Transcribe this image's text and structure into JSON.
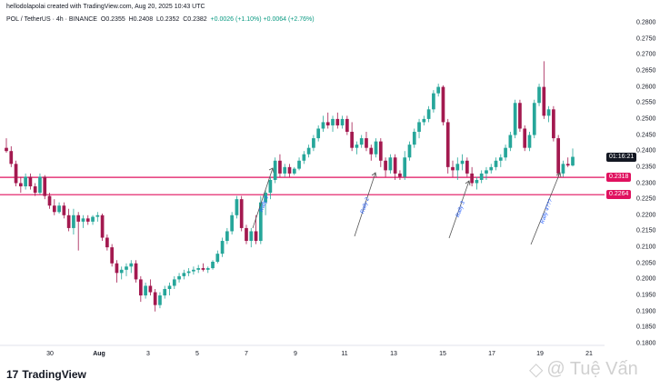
{
  "header": {
    "credit": "hellodolapolai created with TradingView.com, Aug 20, 2025 10:43 UTC",
    "symbol": "POL / TetherUS · 4h · BINANCE",
    "open": "O0.2355",
    "high": "H0.2408",
    "low": "L0.2352",
    "close": "C0.2382",
    "change": "+0.0026 (+1.10%) +0.0064 (+2.76%)"
  },
  "price_axis": {
    "ticks": [
      "0.2800",
      "0.2750",
      "0.2700",
      "0.2650",
      "0.2600",
      "0.2550",
      "0.2500",
      "0.2450",
      "0.2400",
      "0.2350",
      "0.2300",
      "0.2250",
      "0.2200",
      "0.2150",
      "0.2100",
      "0.2050",
      "0.2000",
      "0.1950",
      "0.1900",
      "0.1850",
      "0.1800"
    ],
    "countdown": "01:16:21",
    "support_upper": "0.2318",
    "support_lower": "0.2264"
  },
  "time_axis": {
    "ticks": [
      "30",
      "Aug",
      "3",
      "5",
      "7",
      "9",
      "11",
      "13",
      "15",
      "17",
      "19",
      "21"
    ]
  },
  "annotations": {
    "rally1": "Rally 1",
    "rally2": "Rally 2",
    "rally3": "Rally 3",
    "rally4": "Rally 4???"
  },
  "branding": {
    "logo": "TradingView",
    "watermark": "@ Tuệ Vấn"
  },
  "colors": {
    "up": "#26a69a",
    "down": "#a3194f",
    "line": "#e0115f",
    "countdown_bg": "#131722"
  },
  "chart_data": {
    "type": "candlestick",
    "symbol": "POL / TetherUS",
    "interval": "4h",
    "exchange": "BINANCE",
    "ylim": [
      0.18,
      0.28
    ],
    "horizontal_lines": [
      0.2318,
      0.2264
    ],
    "candles": [
      [
        0.241,
        0.244,
        0.2395,
        0.24
      ],
      [
        0.24,
        0.2415,
        0.235,
        0.236
      ],
      [
        0.236,
        0.237,
        0.229,
        0.23
      ],
      [
        0.23,
        0.232,
        0.227,
        0.229
      ],
      [
        0.229,
        0.233,
        0.228,
        0.232
      ],
      [
        0.232,
        0.233,
        0.228,
        0.229
      ],
      [
        0.229,
        0.23,
        0.226,
        0.227
      ],
      [
        0.227,
        0.233,
        0.2265,
        0.232
      ],
      [
        0.232,
        0.2325,
        0.225,
        0.226
      ],
      [
        0.226,
        0.227,
        0.222,
        0.223
      ],
      [
        0.223,
        0.225,
        0.22,
        0.221
      ],
      [
        0.221,
        0.224,
        0.2205,
        0.223
      ],
      [
        0.223,
        0.224,
        0.219,
        0.22
      ],
      [
        0.22,
        0.222,
        0.215,
        0.216
      ],
      [
        0.216,
        0.222,
        0.214,
        0.22
      ],
      [
        0.22,
        0.221,
        0.209,
        0.218
      ],
      [
        0.218,
        0.22,
        0.216,
        0.219
      ],
      [
        0.219,
        0.22,
        0.217,
        0.218
      ],
      [
        0.218,
        0.22,
        0.217,
        0.2195
      ],
      [
        0.2195,
        0.221,
        0.218,
        0.22
      ],
      [
        0.22,
        0.2205,
        0.212,
        0.213
      ],
      [
        0.213,
        0.214,
        0.209,
        0.21
      ],
      [
        0.21,
        0.211,
        0.204,
        0.205
      ],
      [
        0.205,
        0.206,
        0.199,
        0.202
      ],
      [
        0.202,
        0.204,
        0.2,
        0.203
      ],
      [
        0.203,
        0.205,
        0.201,
        0.204
      ],
      [
        0.204,
        0.206,
        0.202,
        0.205
      ],
      [
        0.205,
        0.206,
        0.199,
        0.2
      ],
      [
        0.2,
        0.201,
        0.193,
        0.195
      ],
      [
        0.195,
        0.199,
        0.194,
        0.198
      ],
      [
        0.198,
        0.2,
        0.195,
        0.196
      ],
      [
        0.196,
        0.197,
        0.19,
        0.192
      ],
      [
        0.192,
        0.196,
        0.191,
        0.195
      ],
      [
        0.195,
        0.198,
        0.194,
        0.197
      ],
      [
        0.197,
        0.199,
        0.195,
        0.198
      ],
      [
        0.198,
        0.201,
        0.197,
        0.2
      ],
      [
        0.2,
        0.202,
        0.199,
        0.201
      ],
      [
        0.201,
        0.203,
        0.2,
        0.202
      ],
      [
        0.202,
        0.2035,
        0.201,
        0.2025
      ],
      [
        0.2025,
        0.204,
        0.2015,
        0.203
      ],
      [
        0.203,
        0.2045,
        0.202,
        0.2035
      ],
      [
        0.2035,
        0.205,
        0.2025,
        0.203
      ],
      [
        0.203,
        0.204,
        0.202,
        0.2035
      ],
      [
        0.2035,
        0.206,
        0.203,
        0.2055
      ],
      [
        0.2055,
        0.209,
        0.205,
        0.208
      ],
      [
        0.208,
        0.213,
        0.207,
        0.212
      ],
      [
        0.212,
        0.216,
        0.211,
        0.215
      ],
      [
        0.215,
        0.221,
        0.214,
        0.22
      ],
      [
        0.22,
        0.226,
        0.219,
        0.225
      ],
      [
        0.225,
        0.226,
        0.215,
        0.216
      ],
      [
        0.216,
        0.217,
        0.211,
        0.212
      ],
      [
        0.212,
        0.216,
        0.21,
        0.215
      ],
      [
        0.215,
        0.22,
        0.211,
        0.212
      ],
      [
        0.212,
        0.226,
        0.211,
        0.224
      ],
      [
        0.224,
        0.228,
        0.22,
        0.227
      ],
      [
        0.227,
        0.232,
        0.225,
        0.231
      ],
      [
        0.231,
        0.238,
        0.23,
        0.237
      ],
      [
        0.237,
        0.239,
        0.232,
        0.233
      ],
      [
        0.233,
        0.236,
        0.232,
        0.235
      ],
      [
        0.235,
        0.236,
        0.232,
        0.233
      ],
      [
        0.233,
        0.235,
        0.2325,
        0.2345
      ],
      [
        0.2345,
        0.238,
        0.234,
        0.237
      ],
      [
        0.237,
        0.24,
        0.236,
        0.239
      ],
      [
        0.239,
        0.242,
        0.238,
        0.241
      ],
      [
        0.241,
        0.245,
        0.24,
        0.244
      ],
      [
        0.244,
        0.248,
        0.243,
        0.247
      ],
      [
        0.247,
        0.251,
        0.246,
        0.249
      ],
      [
        0.249,
        0.252,
        0.247,
        0.248
      ],
      [
        0.248,
        0.251,
        0.246,
        0.25
      ],
      [
        0.25,
        0.252,
        0.247,
        0.248
      ],
      [
        0.248,
        0.251,
        0.247,
        0.25
      ],
      [
        0.25,
        0.251,
        0.245,
        0.246
      ],
      [
        0.246,
        0.249,
        0.24,
        0.241
      ],
      [
        0.241,
        0.243,
        0.239,
        0.242
      ],
      [
        0.242,
        0.245,
        0.241,
        0.244
      ],
      [
        0.244,
        0.246,
        0.24,
        0.241
      ],
      [
        0.241,
        0.242,
        0.237,
        0.239
      ],
      [
        0.239,
        0.244,
        0.238,
        0.243
      ],
      [
        0.243,
        0.244,
        0.235,
        0.237
      ],
      [
        0.237,
        0.238,
        0.232,
        0.234
      ],
      [
        0.234,
        0.239,
        0.233,
        0.238
      ],
      [
        0.238,
        0.239,
        0.231,
        0.233
      ],
      [
        0.233,
        0.234,
        0.231,
        0.232
      ],
      [
        0.232,
        0.24,
        0.231,
        0.238
      ],
      [
        0.238,
        0.243,
        0.237,
        0.242
      ],
      [
        0.242,
        0.247,
        0.241,
        0.246
      ],
      [
        0.246,
        0.25,
        0.244,
        0.249
      ],
      [
        0.249,
        0.251,
        0.248,
        0.25
      ],
      [
        0.25,
        0.254,
        0.249,
        0.253
      ],
      [
        0.253,
        0.259,
        0.252,
        0.258
      ],
      [
        0.258,
        0.261,
        0.257,
        0.26
      ],
      [
        0.26,
        0.2605,
        0.248,
        0.249
      ],
      [
        0.249,
        0.25,
        0.233,
        0.235
      ],
      [
        0.235,
        0.237,
        0.232,
        0.234
      ],
      [
        0.234,
        0.238,
        0.231,
        0.236
      ],
      [
        0.236,
        0.239,
        0.234,
        0.237
      ],
      [
        0.237,
        0.238,
        0.232,
        0.233
      ],
      [
        0.233,
        0.235,
        0.229,
        0.23
      ],
      [
        0.23,
        0.232,
        0.228,
        0.231
      ],
      [
        0.231,
        0.234,
        0.23,
        0.233
      ],
      [
        0.233,
        0.235,
        0.231,
        0.234
      ],
      [
        0.234,
        0.236,
        0.233,
        0.235
      ],
      [
        0.235,
        0.238,
        0.234,
        0.237
      ],
      [
        0.237,
        0.239,
        0.235,
        0.238
      ],
      [
        0.238,
        0.242,
        0.237,
        0.241
      ],
      [
        0.241,
        0.246,
        0.24,
        0.245
      ],
      [
        0.245,
        0.256,
        0.244,
        0.255
      ],
      [
        0.255,
        0.256,
        0.246,
        0.247
      ],
      [
        0.247,
        0.248,
        0.24,
        0.241
      ],
      [
        0.241,
        0.246,
        0.24,
        0.245
      ],
      [
        0.245,
        0.256,
        0.244,
        0.255
      ],
      [
        0.255,
        0.261,
        0.254,
        0.26
      ],
      [
        0.26,
        0.268,
        0.25,
        0.251
      ],
      [
        0.251,
        0.254,
        0.249,
        0.253
      ],
      [
        0.253,
        0.254,
        0.243,
        0.244
      ],
      [
        0.244,
        0.245,
        0.232,
        0.233
      ],
      [
        0.233,
        0.237,
        0.232,
        0.236
      ],
      [
        0.236,
        0.238,
        0.235,
        0.2355
      ],
      [
        0.2355,
        0.2408,
        0.2352,
        0.2382
      ]
    ]
  }
}
